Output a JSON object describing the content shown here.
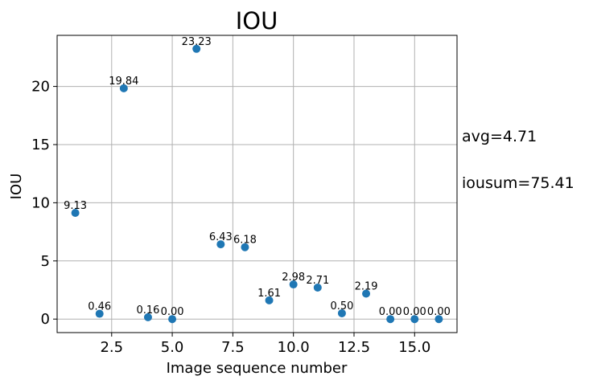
{
  "chart_data": {
    "type": "scatter",
    "title": "IOU",
    "xlabel": "Image sequence number",
    "ylabel": "IOU",
    "x": [
      1,
      2,
      3,
      4,
      5,
      6,
      7,
      8,
      9,
      10,
      11,
      12,
      13,
      14,
      15,
      16
    ],
    "y": [
      9.13,
      0.46,
      19.84,
      0.16,
      0.0,
      23.23,
      6.43,
      6.18,
      1.61,
      2.98,
      2.71,
      0.5,
      2.19,
      0.0,
      0.0,
      0.0
    ],
    "point_labels": [
      "9.13",
      "0.46",
      "19.84",
      "0.16",
      "0.00",
      "23.23",
      "6.43",
      "6.18",
      "1.61",
      "2.98",
      "2.71",
      "0.50",
      "2.19",
      "0.00",
      "0.00",
      "0.00"
    ],
    "xlim": [
      0.25,
      16.75
    ],
    "ylim": [
      -1.16,
      24.39
    ],
    "xticks": [
      2.5,
      5.0,
      7.5,
      10.0,
      12.5,
      15.0
    ],
    "xtick_labels": [
      "2.5",
      "5.0",
      "7.5",
      "10.0",
      "12.5",
      "15.0"
    ],
    "yticks": [
      0,
      5,
      10,
      15,
      20
    ],
    "ytick_labels": [
      "0",
      "5",
      "10",
      "15",
      "20"
    ],
    "grid": true,
    "marker_color": "#1f77b4",
    "annotations": [
      "avg=4.71",
      "iousum=75.41"
    ]
  }
}
